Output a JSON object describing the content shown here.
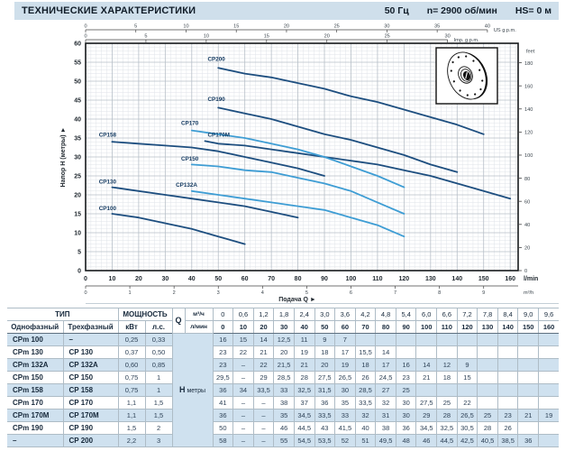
{
  "header": {
    "title": "ТЕХНИЧЕСКИЕ ХАРАКТЕРИСТИКИ",
    "frequency": "50 Гц",
    "speed": "n= 2900 об/мин",
    "suction": "HS= 0 м"
  },
  "chart_data": {
    "type": "line",
    "xlabel": "Подача Q ►",
    "ylabel": "Напор H (метры) ►",
    "x_unit": "l/min",
    "x2_unit": "m³/h",
    "top_unit_us": "US g.p.m.",
    "top_unit_imp": "Imp. g.p.m.",
    "right_unit": "feet",
    "xlim": [
      0,
      163
    ],
    "ylim": [
      0,
      60
    ],
    "grid": "fine",
    "x_ticks_lmin": [
      0,
      10,
      20,
      30,
      40,
      50,
      60,
      70,
      80,
      90,
      100,
      110,
      120,
      130,
      140,
      150,
      160
    ],
    "x_ticks_m3h": [
      0,
      1,
      2,
      3,
      4,
      5,
      6,
      7,
      8,
      9
    ],
    "y_ticks_m": [
      0,
      5,
      10,
      15,
      20,
      25,
      30,
      35,
      40,
      45,
      50,
      55,
      60
    ],
    "y_ticks_feet": [
      0,
      20,
      40,
      60,
      80,
      100,
      120,
      140,
      160,
      180
    ],
    "top_ticks_usgpm": [
      0,
      5,
      10,
      15,
      20,
      25,
      30,
      35,
      40
    ],
    "top_ticks_impgpm": [
      0,
      5,
      10,
      15,
      20,
      25,
      30
    ],
    "colors": {
      "dark": "#1d4e7f",
      "light": "#3e9dd4"
    },
    "series": [
      {
        "name": "CP200",
        "color": "dark",
        "label_pos": [
          46,
          55.3
        ],
        "points": [
          [
            50,
            53.5
          ],
          [
            60,
            52
          ],
          [
            70,
            51
          ],
          [
            80,
            49.5
          ],
          [
            90,
            48
          ],
          [
            100,
            46
          ],
          [
            110,
            44.5
          ],
          [
            120,
            42.5
          ],
          [
            130,
            40.5
          ],
          [
            140,
            38.5
          ],
          [
            150,
            36
          ]
        ]
      },
      {
        "name": "CP190",
        "color": "dark",
        "label_pos": [
          46,
          44.8
        ],
        "points": [
          [
            50,
            43
          ],
          [
            60,
            41.5
          ],
          [
            70,
            40
          ],
          [
            80,
            38
          ],
          [
            90,
            36
          ],
          [
            100,
            34.5
          ],
          [
            110,
            32.5
          ],
          [
            120,
            30.5
          ],
          [
            130,
            28
          ],
          [
            140,
            26
          ]
        ]
      },
      {
        "name": "CP170M",
        "color": "dark",
        "label_pos": [
          46,
          35.3
        ],
        "points": [
          [
            45,
            34.2
          ],
          [
            50,
            33.5
          ],
          [
            60,
            33
          ],
          [
            70,
            32
          ],
          [
            80,
            31
          ],
          [
            90,
            30
          ],
          [
            100,
            29
          ],
          [
            110,
            28
          ],
          [
            120,
            26.5
          ],
          [
            130,
            25
          ],
          [
            140,
            23
          ],
          [
            150,
            21
          ],
          [
            160,
            19
          ]
        ]
      },
      {
        "name": "CP158",
        "color": "dark",
        "label_pos": [
          5,
          35.3
        ],
        "points": [
          [
            10,
            34
          ],
          [
            20,
            33.5
          ],
          [
            30,
            33
          ],
          [
            40,
            32.5
          ],
          [
            50,
            31.5
          ],
          [
            60,
            30
          ],
          [
            70,
            28.5
          ],
          [
            80,
            27
          ],
          [
            90,
            25
          ]
        ]
      },
      {
        "name": "CP130",
        "color": "dark",
        "label_pos": [
          5,
          23
        ],
        "points": [
          [
            10,
            22
          ],
          [
            20,
            21
          ],
          [
            30,
            20
          ],
          [
            40,
            19
          ],
          [
            50,
            18
          ],
          [
            60,
            17
          ],
          [
            70,
            15.5
          ],
          [
            80,
            14
          ]
        ]
      },
      {
        "name": "CP100",
        "color": "dark",
        "label_pos": [
          5,
          16
        ],
        "points": [
          [
            10,
            15
          ],
          [
            20,
            14
          ],
          [
            30,
            12.5
          ],
          [
            40,
            11
          ],
          [
            50,
            9
          ],
          [
            60,
            7
          ]
        ]
      },
      {
        "name": "CP170",
        "color": "light",
        "label_pos": [
          36,
          38.4
        ],
        "points": [
          [
            40,
            37
          ],
          [
            50,
            36
          ],
          [
            60,
            35
          ],
          [
            70,
            33.5
          ],
          [
            80,
            32
          ],
          [
            90,
            30
          ],
          [
            100,
            27.5
          ],
          [
            110,
            25
          ],
          [
            120,
            22
          ]
        ]
      },
      {
        "name": "CP150",
        "color": "light",
        "label_pos": [
          36,
          29
        ],
        "points": [
          [
            40,
            28
          ],
          [
            50,
            27.5
          ],
          [
            60,
            26.5
          ],
          [
            70,
            26
          ],
          [
            80,
            24.5
          ],
          [
            90,
            23
          ],
          [
            100,
            21
          ],
          [
            110,
            18
          ],
          [
            120,
            15
          ]
        ]
      },
      {
        "name": "CP132A",
        "color": "light",
        "label_pos": [
          34,
          22.2
        ],
        "points": [
          [
            40,
            21
          ],
          [
            50,
            20
          ],
          [
            60,
            19
          ],
          [
            70,
            18
          ],
          [
            80,
            17
          ],
          [
            90,
            16
          ],
          [
            100,
            14
          ],
          [
            110,
            12
          ],
          [
            120,
            9
          ]
        ]
      }
    ]
  },
  "table": {
    "header": {
      "type": "ТИП",
      "power": "МОЩНОСТЬ",
      "single": "Однофазный",
      "three": "Трехфазный",
      "kw": "кВт",
      "hp": "л.с.",
      "q": "Q",
      "q_unit_top": "м³/ч",
      "q_unit_bottom": "л/мин",
      "h_bold": "H",
      "h_rest": "метры"
    },
    "q_m3h": [
      "0",
      "0,6",
      "1,2",
      "1,8",
      "2,4",
      "3,0",
      "3,6",
      "4,2",
      "4,8",
      "5,4",
      "6,0",
      "6,6",
      "7,2",
      "7,8",
      "8,4",
      "9,0",
      "9,6"
    ],
    "q_lmin": [
      "0",
      "10",
      "20",
      "30",
      "40",
      "50",
      "60",
      "70",
      "80",
      "90",
      "100",
      "110",
      "120",
      "130",
      "140",
      "150",
      "160"
    ],
    "rows": [
      {
        "single": "CPm 100",
        "three": "–",
        "kw": "0,25",
        "hp": "0,33",
        "h": [
          "16",
          "15",
          "14",
          "12,5",
          "11",
          "9",
          "7",
          "",
          "",
          "",
          "",
          "",
          "",
          "",
          "",
          "",
          ""
        ]
      },
      {
        "single": "CPm 130",
        "three": "CP 130",
        "kw": "0,37",
        "hp": "0,50",
        "h": [
          "23",
          "22",
          "21",
          "20",
          "19",
          "18",
          "17",
          "15,5",
          "14",
          "",
          "",
          "",
          "",
          "",
          "",
          "",
          ""
        ]
      },
      {
        "single": "CPm 132A",
        "three": "CP 132A",
        "kw": "0,60",
        "hp": "0,85",
        "h": [
          "23",
          "–",
          "22",
          "21,5",
          "21",
          "20",
          "19",
          "18",
          "17",
          "16",
          "14",
          "12",
          "9",
          "",
          "",
          "",
          ""
        ]
      },
      {
        "single": "CPm 150",
        "three": "CP 150",
        "kw": "0,75",
        "hp": "1",
        "h": [
          "29,5",
          "–",
          "29",
          "28,5",
          "28",
          "27,5",
          "26,5",
          "26",
          "24,5",
          "23",
          "21",
          "18",
          "15",
          "",
          "",
          "",
          ""
        ]
      },
      {
        "single": "CPm 158",
        "three": "CP 158",
        "kw": "0,75",
        "hp": "1",
        "h": [
          "36",
          "34",
          "33,5",
          "33",
          "32,5",
          "31,5",
          "30",
          "28,5",
          "27",
          "25",
          "",
          "",
          "",
          "",
          "",
          "",
          ""
        ]
      },
      {
        "single": "CPm 170",
        "three": "CP 170",
        "kw": "1,1",
        "hp": "1,5",
        "h": [
          "41",
          "–",
          "–",
          "38",
          "37",
          "36",
          "35",
          "33,5",
          "32",
          "30",
          "27,5",
          "25",
          "22",
          "",
          "",
          "",
          ""
        ]
      },
      {
        "single": "CPm 170M",
        "three": "CP 170M",
        "kw": "1,1",
        "hp": "1,5",
        "h": [
          "36",
          "–",
          "–",
          "35",
          "34,5",
          "33,5",
          "33",
          "32",
          "31",
          "30",
          "29",
          "28",
          "26,5",
          "25",
          "23",
          "21",
          "19"
        ]
      },
      {
        "single": "CPm 190",
        "three": "CP 190",
        "kw": "1,5",
        "hp": "2",
        "h": [
          "50",
          "–",
          "–",
          "46",
          "44,5",
          "43",
          "41,5",
          "40",
          "38",
          "36",
          "34,5",
          "32,5",
          "30,5",
          "28",
          "26",
          "",
          ""
        ]
      },
      {
        "single": "–",
        "three": "CP 200",
        "kw": "2,2",
        "hp": "3",
        "h": [
          "58",
          "–",
          "–",
          "55",
          "54,5",
          "53,5",
          "52",
          "51",
          "49,5",
          "48",
          "46",
          "44,5",
          "42,5",
          "40,5",
          "38,5",
          "36",
          ""
        ]
      }
    ]
  }
}
